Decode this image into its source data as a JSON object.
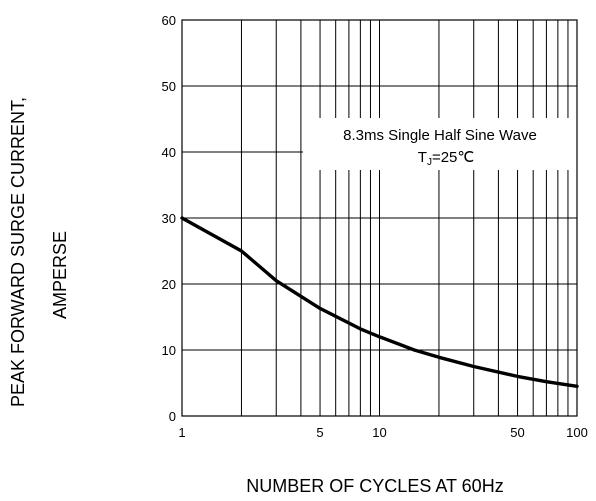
{
  "chart_data": {
    "type": "line",
    "title": "",
    "xlabel": "NUMBER OF CYCLES AT 60Hz",
    "ylabel_lines": [
      "PEAK FORWARD SURGE CURRENT,",
      "AMPERSE"
    ],
    "x_scale": "log",
    "xlim": [
      1,
      100
    ],
    "ylim": [
      0,
      60
    ],
    "x_ticks": [
      1,
      5,
      10,
      50,
      100
    ],
    "x_tick_labels": [
      "1",
      "5",
      "10",
      "50",
      "100"
    ],
    "y_ticks": [
      0,
      10,
      20,
      30,
      40,
      50,
      60
    ],
    "y_tick_labels": [
      "0",
      "10",
      "20",
      "30",
      "40",
      "50",
      "60"
    ],
    "grid": true,
    "annotation": {
      "line1": "8.3ms Single Half Sine Wave",
      "line2_prefix": "T",
      "line2_sub": "J",
      "line2_suffix": "=25℃"
    },
    "series": [
      {
        "x": [
          1,
          2,
          3,
          5,
          8,
          10,
          15,
          20,
          30,
          50,
          70,
          100
        ],
        "y": [
          30,
          25,
          20.5,
          16.3,
          13.2,
          12,
          10,
          8.9,
          7.5,
          6,
          5.2,
          4.5
        ],
        "color": "#000000"
      }
    ]
  }
}
